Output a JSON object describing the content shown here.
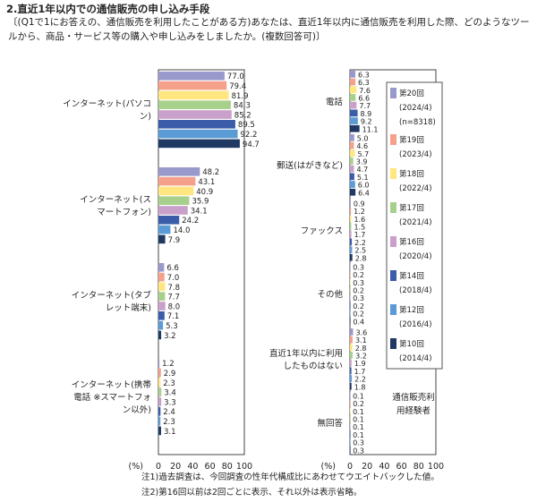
{
  "header": {
    "title": "2.直近1年以内での通信販売の申し込み手段",
    "question": "〔(Q1で1にお答えの、通信販売を利用したことがある方)あなたは、直近1年以内に通信販売を利用した際、どのようなツールから、商品・サービス等の購入や申し込みをしましたか。(複数回答可)〕"
  },
  "notes": [
    "注1)過去調査は、今回調査の性年代構成比にあわせてウエイトバックした値。",
    "注2)第16回以前は2回ごとに表示、それ以外は表示省略。"
  ],
  "chart_data": {
    "type": "bar",
    "orientation": "horizontal",
    "xlabel": "(%)",
    "xlim": [
      0,
      100
    ],
    "xticks": [
      0,
      20,
      40,
      60,
      80,
      100
    ],
    "colors": [
      "#9999cc",
      "#f4a08a",
      "#ffe680",
      "#a8d08d",
      "#c9a0c9",
      "#3b5ca8",
      "#5b9bd5",
      "#1f3864"
    ],
    "series": [
      {
        "name": "第20回",
        "detail": "(2024/4)",
        "extra": "(n=8318)"
      },
      {
        "name": "第19回",
        "detail": "(2023/4)"
      },
      {
        "name": "第18回",
        "detail": "(2022/4)"
      },
      {
        "name": "第17回",
        "detail": "(2021/4)"
      },
      {
        "name": "第16回",
        "detail": "(2020/4)"
      },
      {
        "name": "第14回",
        "detail": "(2018/4)"
      },
      {
        "name": "第12回",
        "detail": "(2016/4)"
      },
      {
        "name": "第10回",
        "detail": "(2014/4)"
      }
    ],
    "legend_note": "通信販売利用経験者",
    "left_panel": {
      "categories": [
        {
          "label": "インターネット(パソコン)",
          "label_lines": [
            "インターネット(パソコ",
            "ン)"
          ],
          "values": [
            77.0,
            79.4,
            81.9,
            84.3,
            85.2,
            89.5,
            92.2,
            94.7
          ]
        },
        {
          "label": "インターネット(スマートフォン)",
          "label_lines": [
            "インターネット(ス",
            "マートフォン)"
          ],
          "values": [
            48.2,
            43.1,
            40.9,
            35.9,
            34.1,
            24.2,
            14.0,
            7.9
          ]
        },
        {
          "label": "インターネット(タブレット端末)",
          "label_lines": [
            "インターネット(タブ",
            "レット端末)"
          ],
          "values": [
            6.6,
            7.0,
            7.8,
            7.7,
            8.0,
            7.1,
            5.3,
            3.2
          ]
        },
        {
          "label": "インターネット(携帯電話 ※スマートフォン以外)",
          "label_lines": [
            "インターネット(携帯",
            "電話 ※スマートフォ",
            "ン以外)"
          ],
          "values": [
            1.2,
            2.9,
            2.3,
            3.4,
            3.3,
            2.4,
            2.3,
            3.1
          ]
        }
      ]
    },
    "right_panel": {
      "categories": [
        {
          "label": "電話",
          "label_lines": [
            "電話"
          ],
          "values": [
            6.3,
            6.3,
            7.6,
            6.6,
            7.7,
            8.9,
            9.2,
            11.1
          ]
        },
        {
          "label": "郵送(はがきなど)",
          "label_lines": [
            "郵送(はがきなど)"
          ],
          "values": [
            5.0,
            4.6,
            5.7,
            3.9,
            4.7,
            5.1,
            6.0,
            6.4
          ]
        },
        {
          "label": "ファックス",
          "label_lines": [
            "ファックス"
          ],
          "values": [
            0.9,
            1.2,
            1.6,
            1.5,
            1.7,
            2.2,
            2.5,
            2.8
          ]
        },
        {
          "label": "その他",
          "label_lines": [
            "その他"
          ],
          "values": [
            0.3,
            0.2,
            0.3,
            0.2,
            0.3,
            0.2,
            0.2,
            0.4
          ]
        },
        {
          "label": "直近1年以内に利用したものはない",
          "label_lines": [
            "直近1年以内に利用",
            "したものはない"
          ],
          "values": [
            3.6,
            3.1,
            2.8,
            3.2,
            1.9,
            1.7,
            2.2,
            1.8
          ]
        },
        {
          "label": "無回答",
          "label_lines": [
            "無回答"
          ],
          "values": [
            0.1,
            0.2,
            0.1,
            0.1,
            0.1,
            0.1,
            0.3,
            0.3
          ]
        }
      ]
    }
  }
}
